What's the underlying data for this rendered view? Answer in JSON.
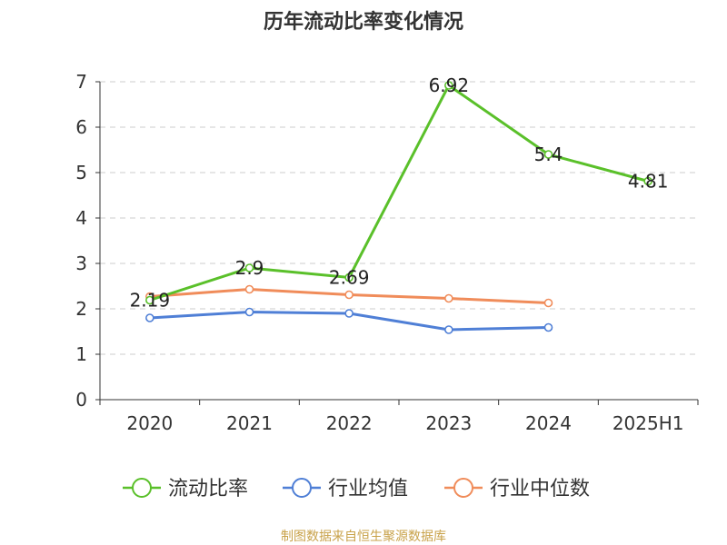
{
  "chart_data": {
    "type": "line",
    "title": "历年流动比率变化情况",
    "categories": [
      "2020",
      "2021",
      "2022",
      "2023",
      "2024",
      "2025H1"
    ],
    "ylim": [
      0,
      7
    ],
    "yticks": [
      0,
      1,
      2,
      3,
      4,
      5,
      6,
      7
    ],
    "grid": true,
    "legend_position": "bottom",
    "series": [
      {
        "name": "流动比率",
        "color": "#5ac02a",
        "values": [
          2.19,
          2.9,
          2.69,
          6.92,
          5.4,
          4.81
        ],
        "labels": [
          "2.19",
          "2.9",
          "2.69",
          "6.92",
          "5.4",
          "4.81"
        ]
      },
      {
        "name": "行业均值",
        "color": "#4f7fd6",
        "values": [
          1.8,
          1.93,
          1.9,
          1.54,
          1.59,
          null
        ]
      },
      {
        "name": "行业中位数",
        "color": "#f08c5a",
        "values": [
          2.27,
          2.43,
          2.31,
          2.23,
          2.13,
          null
        ]
      }
    ]
  },
  "source": "制图数据来自恒生聚源数据库"
}
